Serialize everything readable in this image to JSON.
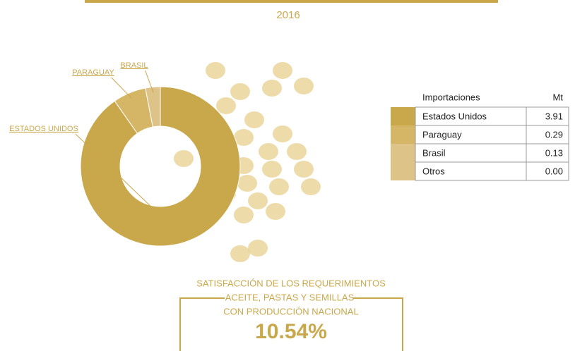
{
  "chart_data": {
    "type": "pie",
    "title": "2016",
    "donut": true,
    "categories": [
      "ESTADOS UNIDOS",
      "PARAGUAY",
      "BRASIL"
    ],
    "values": [
      3.91,
      0.29,
      0.13
    ],
    "colors": [
      "#c9a84c",
      "#d5b667",
      "#ddc387"
    ]
  },
  "table": {
    "header": [
      "Importaciones",
      "Mt"
    ],
    "rows": [
      [
        "Estados Unidos",
        "3.91"
      ],
      [
        "Paraguay",
        "0.29"
      ],
      [
        "Brasil",
        "0.13"
      ],
      [
        "Otros",
        "0.00"
      ]
    ],
    "colors": [
      "#c9a84c",
      "#d5b667",
      "#ddc387",
      "#ddc387"
    ]
  },
  "footer": {
    "lines": [
      "SATISFACCIÓN DE LOS REQUERIMIENTOS",
      "ACEITE, PASTAS Y SEMILLAS",
      "CON PRODUCCIÓN NACIONAL"
    ],
    "value": "10.54%"
  }
}
